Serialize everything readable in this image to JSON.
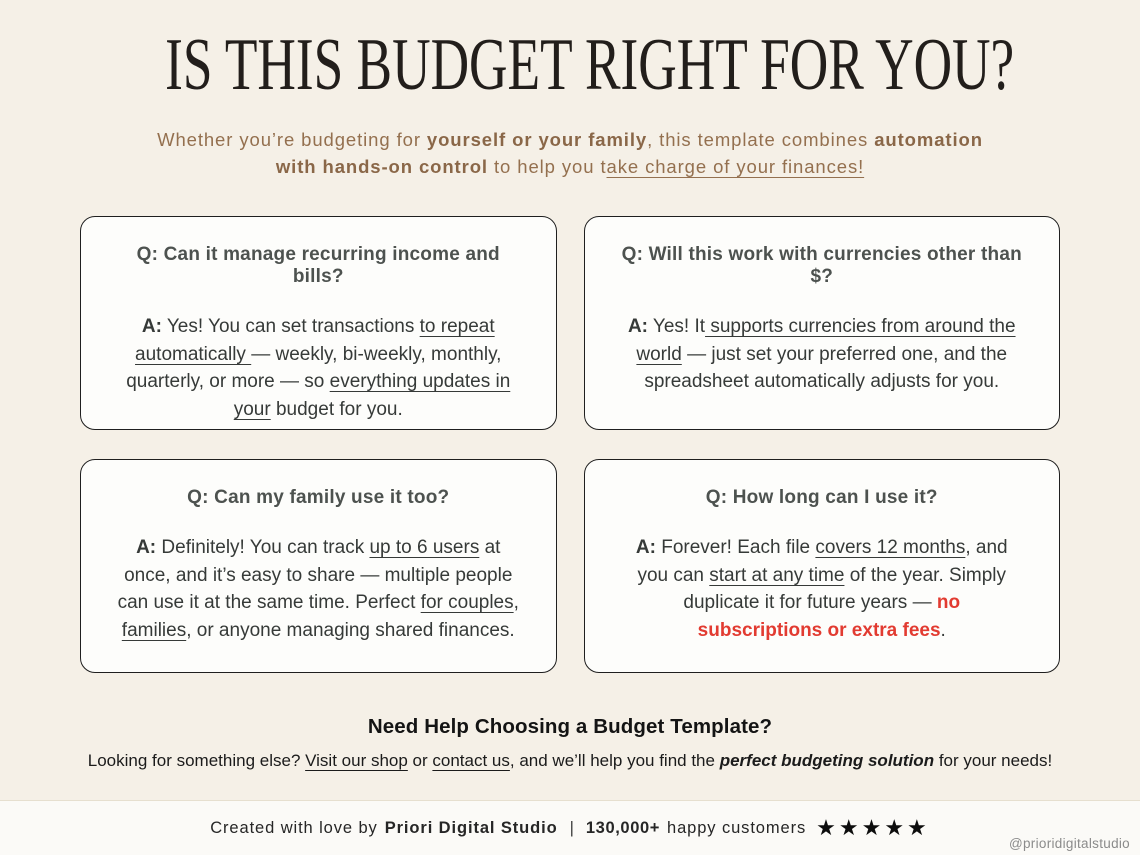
{
  "header": {
    "title": "IS THIS BUDGET RIGHT FOR YOU?",
    "subtitle_segments": [
      {
        "t": "Whether you’re budgeting for "
      },
      {
        "t": "yourself or your family",
        "c": "b"
      },
      {
        "t": ", this template combines "
      },
      {
        "t": "automation",
        "c": "b"
      },
      {
        "br": true
      },
      {
        "t": "with hands-on control",
        "c": "b"
      },
      {
        "t": " to help you t"
      },
      {
        "t": "ake charge of your finances!",
        "c": "u"
      }
    ]
  },
  "cards": {
    "items": [
      {
        "question": "Q: Can it manage recurring income and bills?",
        "answer": [
          {
            "t": "A:",
            "c": "b"
          },
          {
            "t": " Yes! You can set transactions "
          },
          {
            "t": "to repeat automatically ",
            "c": "u"
          },
          {
            "t": "— weekly, bi-weekly, monthly, quarterly, or more — so "
          },
          {
            "t": "everything updates in your",
            "c": "u"
          },
          {
            "t": " budget for you."
          }
        ]
      },
      {
        "question": "Q: Will this work with currencies other than $?",
        "answer": [
          {
            "t": "A:",
            "c": "b"
          },
          {
            "t": " Yes! It"
          },
          {
            "t": " supports currencies from around the world",
            "c": "u"
          },
          {
            "t": " — just set your preferred one, and the spreadsheet automatically adjusts for you."
          }
        ]
      },
      {
        "question": "Q: Can my family use it too?",
        "answer": [
          {
            "t": "A:",
            "c": "b"
          },
          {
            "t": " Definitely! You can track "
          },
          {
            "t": "up to 6 users",
            "c": "u"
          },
          {
            "t": " at once, and it’s easy to share — multiple people can use it at the same time. Perfect "
          },
          {
            "t": "for couples",
            "c": "u"
          },
          {
            "t": ", "
          },
          {
            "t": "families",
            "c": "u"
          },
          {
            "t": ", or anyone managing shared finances."
          }
        ]
      },
      {
        "question": "Q: How long can I use it?",
        "answer": [
          {
            "t": "A:",
            "c": "b"
          },
          {
            "t": " Forever! Each file "
          },
          {
            "t": "covers 12 months",
            "c": "u"
          },
          {
            "t": ", and you can "
          },
          {
            "t": "start at any time",
            "c": "u"
          },
          {
            "t": " of the year. Simply duplicate it for future years — "
          },
          {
            "t": "no subscriptions or extra fees",
            "c": "b red"
          },
          {
            "t": "."
          }
        ]
      }
    ]
  },
  "help": {
    "heading": "Need Help Choosing a Budget Template?",
    "segments": [
      {
        "t": "Looking for something else? "
      },
      {
        "t": "Visit our shop",
        "c": "u",
        "n": "visit-shop-link",
        "link": true
      },
      {
        "t": " or "
      },
      {
        "t": "contact us",
        "c": "u",
        "n": "contact-us-link",
        "link": true
      },
      {
        "t": ", and we’ll help you find the "
      },
      {
        "t": "perfect budgeting solution",
        "c": "b i"
      },
      {
        "t": " for your needs!"
      }
    ]
  },
  "footer": {
    "created_prefix": "Created with love by",
    "brand": "Priori Digital Studio",
    "separator": "|",
    "customers_count": "130,000+",
    "customers_label": "happy customers",
    "stars": "★★★★★",
    "handle": "@prioridigitalstudio"
  },
  "colors": {
    "page_background": "#f5f0e7",
    "card_background": "#fdfdfb",
    "card_border": "#1f1f1f",
    "title": "#221e1b",
    "subtitle_brown": "#94704f",
    "question_gray": "#4d524f",
    "answer_gray": "#363a38",
    "alert_red": "#e23b31",
    "footer_background": "#fbfaf7"
  }
}
